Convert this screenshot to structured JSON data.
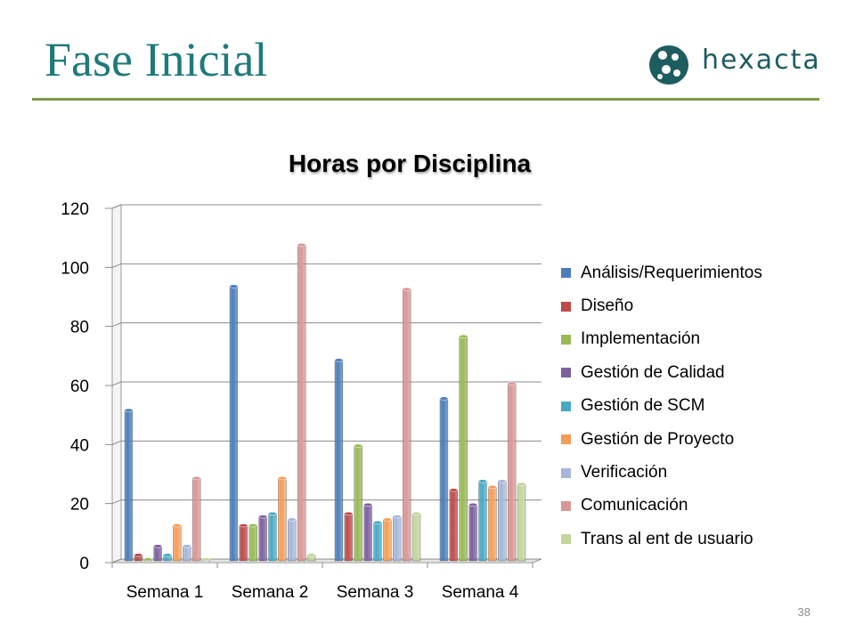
{
  "slide": {
    "title": "Fase Inicial",
    "page_number": "38"
  },
  "logo": {
    "text": "hexacta",
    "icon": "hexacta-logo-icon",
    "color": "#1d5c5f"
  },
  "colors": {
    "title": "#1f7a7a",
    "rule": "#7f9a48"
  },
  "chart_data": {
    "type": "bar",
    "title": "Horas por Disciplina",
    "xlabel": "",
    "ylabel": "",
    "ylim": [
      0,
      120
    ],
    "yticks": [
      "0",
      "20",
      "40",
      "60",
      "80",
      "100",
      "120"
    ],
    "grid": true,
    "legend_position": "right",
    "style": "3d-cylinder",
    "categories": [
      "Semana 1",
      "Semana 2",
      "Semana 3",
      "Semana 4"
    ],
    "series": [
      {
        "name": "Análisis/Requerimientos",
        "color": "#4a7ebb",
        "values": [
          51,
          93,
          68,
          55
        ]
      },
      {
        "name": "Diseño",
        "color": "#be4b48",
        "values": [
          2,
          12,
          16,
          24
        ]
      },
      {
        "name": "Implementación",
        "color": "#98b954",
        "values": [
          0.5,
          12,
          39,
          76
        ]
      },
      {
        "name": "Gestión de Calidad",
        "color": "#7d60a0",
        "values": [
          5,
          15,
          19,
          19
        ]
      },
      {
        "name": "Gestión de SCM",
        "color": "#46aac5",
        "values": [
          2,
          16,
          13,
          27
        ]
      },
      {
        "name": "Gestión de Proyecto",
        "color": "#f59d56",
        "values": [
          12,
          28,
          14,
          25
        ]
      },
      {
        "name": "Verificación",
        "color": "#a5b6d9",
        "values": [
          5,
          14,
          15,
          27
        ]
      },
      {
        "name": "Comunicación",
        "color": "#da9694",
        "values": [
          28,
          107,
          92,
          60
        ]
      },
      {
        "name": "Trans al ent de usuario",
        "color": "#c3d69b",
        "values": [
          0.5,
          2,
          16,
          26
        ]
      }
    ]
  }
}
